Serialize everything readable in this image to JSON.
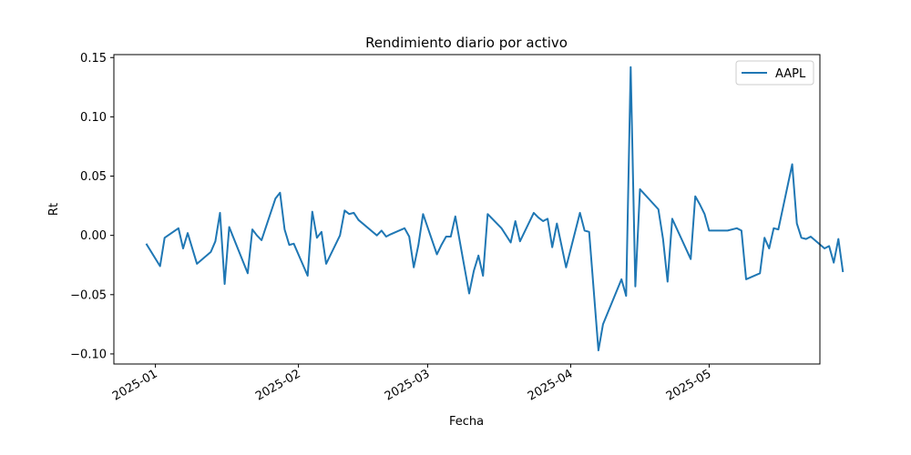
{
  "chart_data": {
    "type": "line",
    "title": "Rendimiento diario por activo",
    "xlabel": "Fecha",
    "ylabel": "Rt",
    "x_range": [
      "2024-12-23",
      "2025-05-25"
    ],
    "ylim": [
      -0.1085,
      0.1525
    ],
    "y_ticks": [
      -0.1,
      -0.05,
      0.0,
      0.05,
      0.1,
      0.15
    ],
    "y_tick_labels": [
      "−0.10",
      "−0.05",
      "0.00",
      "0.05",
      "0.10",
      "0.15"
    ],
    "x_ticks": [
      "2025-01-01",
      "2025-02-01",
      "2025-03-01",
      "2025-04-01",
      "2025-05-01"
    ],
    "x_tick_labels": [
      "2025-01",
      "2025-02",
      "2025-03",
      "2025-04",
      "2025-05"
    ],
    "grid": false,
    "legend_position": "top-right",
    "series": [
      {
        "name": "AAPL",
        "color": "#1f77b4",
        "points": [
          [
            "2024-12-30",
            -0.007
          ],
          [
            "2025-01-02",
            -0.026
          ],
          [
            "2025-01-03",
            -0.002
          ],
          [
            "2025-01-06",
            0.006
          ],
          [
            "2025-01-07",
            -0.011
          ],
          [
            "2025-01-08",
            0.002
          ],
          [
            "2025-01-10",
            -0.024
          ],
          [
            "2025-01-13",
            -0.014
          ],
          [
            "2025-01-14",
            -0.005
          ],
          [
            "2025-01-15",
            0.019
          ],
          [
            "2025-01-16",
            -0.041
          ],
          [
            "2025-01-17",
            0.007
          ],
          [
            "2025-01-21",
            -0.032
          ],
          [
            "2025-01-22",
            0.005
          ],
          [
            "2025-01-23",
            0.0
          ],
          [
            "2025-01-24",
            -0.004
          ],
          [
            "2025-01-27",
            0.031
          ],
          [
            "2025-01-28",
            0.036
          ],
          [
            "2025-01-29",
            0.005
          ],
          [
            "2025-01-30",
            -0.008
          ],
          [
            "2025-01-31",
            -0.007
          ],
          [
            "2025-02-03",
            -0.034
          ],
          [
            "2025-02-04",
            0.02
          ],
          [
            "2025-02-05",
            -0.002
          ],
          [
            "2025-02-06",
            0.003
          ],
          [
            "2025-02-07",
            -0.024
          ],
          [
            "2025-02-10",
            0.0
          ],
          [
            "2025-02-11",
            0.021
          ],
          [
            "2025-02-12",
            0.018
          ],
          [
            "2025-02-13",
            0.019
          ],
          [
            "2025-02-14",
            0.013
          ],
          [
            "2025-02-18",
            0.0
          ],
          [
            "2025-02-19",
            0.004
          ],
          [
            "2025-02-20",
            -0.001
          ],
          [
            "2025-02-21",
            0.001
          ],
          [
            "2025-02-24",
            0.006
          ],
          [
            "2025-02-25",
            -0.001
          ],
          [
            "2025-02-26",
            -0.027
          ],
          [
            "2025-02-27",
            -0.008
          ],
          [
            "2025-02-28",
            0.018
          ],
          [
            "2025-03-03",
            -0.016
          ],
          [
            "2025-03-04",
            -0.008
          ],
          [
            "2025-03-05",
            -0.001
          ],
          [
            "2025-03-06",
            -0.001
          ],
          [
            "2025-03-07",
            0.016
          ],
          [
            "2025-03-10",
            -0.049
          ],
          [
            "2025-03-11",
            -0.03
          ],
          [
            "2025-03-12",
            -0.017
          ],
          [
            "2025-03-13",
            -0.034
          ],
          [
            "2025-03-14",
            0.018
          ],
          [
            "2025-03-17",
            0.006
          ],
          [
            "2025-03-18",
            0.0
          ],
          [
            "2025-03-19",
            -0.006
          ],
          [
            "2025-03-20",
            0.012
          ],
          [
            "2025-03-21",
            -0.005
          ],
          [
            "2025-03-24",
            0.019
          ],
          [
            "2025-03-25",
            0.015
          ],
          [
            "2025-03-26",
            0.012
          ],
          [
            "2025-03-27",
            0.014
          ],
          [
            "2025-03-28",
            -0.01
          ],
          [
            "2025-03-29",
            0.01
          ],
          [
            "2025-03-31",
            -0.027
          ],
          [
            "2025-04-03",
            0.019
          ],
          [
            "2025-04-04",
            0.004
          ],
          [
            "2025-04-05",
            0.003
          ],
          [
            "2025-04-07",
            -0.097
          ],
          [
            "2025-04-08",
            -0.075
          ],
          [
            "2025-04-12",
            -0.037
          ],
          [
            "2025-04-13",
            -0.051
          ],
          [
            "2025-04-14",
            0.142
          ],
          [
            "2025-04-15",
            -0.043
          ],
          [
            "2025-04-16",
            0.039
          ],
          [
            "2025-04-20",
            0.022
          ],
          [
            "2025-04-21",
            -0.003
          ],
          [
            "2025-04-22",
            -0.039
          ],
          [
            "2025-04-23",
            0.014
          ],
          [
            "2025-04-27",
            -0.02
          ],
          [
            "2025-04-28",
            0.033
          ],
          [
            "2025-04-29",
            0.026
          ],
          [
            "2025-04-30",
            0.018
          ],
          [
            "2025-05-01",
            0.004
          ],
          [
            "2025-05-04",
            0.004
          ],
          [
            "2025-05-05",
            0.004
          ],
          [
            "2025-05-07",
            0.006
          ],
          [
            "2025-05-08",
            0.004
          ],
          [
            "2025-05-09",
            -0.037
          ],
          [
            "2025-05-12",
            -0.032
          ],
          [
            "2025-05-13",
            -0.002
          ],
          [
            "2025-05-14",
            -0.011
          ],
          [
            "2025-05-15",
            0.006
          ],
          [
            "2025-05-16",
            0.005
          ],
          [
            "2025-05-19",
            0.06
          ],
          [
            "2025-05-20",
            0.01
          ],
          [
            "2025-05-21",
            -0.002
          ],
          [
            "2025-05-22",
            -0.003
          ],
          [
            "2025-05-23",
            -0.001
          ],
          [
            "2025-05-26",
            -0.011
          ],
          [
            "2025-05-27",
            -0.009
          ],
          [
            "2025-05-28",
            -0.023
          ],
          [
            "2025-05-29",
            -0.003
          ],
          [
            "2025-05-30",
            -0.031
          ]
        ]
      }
    ]
  }
}
